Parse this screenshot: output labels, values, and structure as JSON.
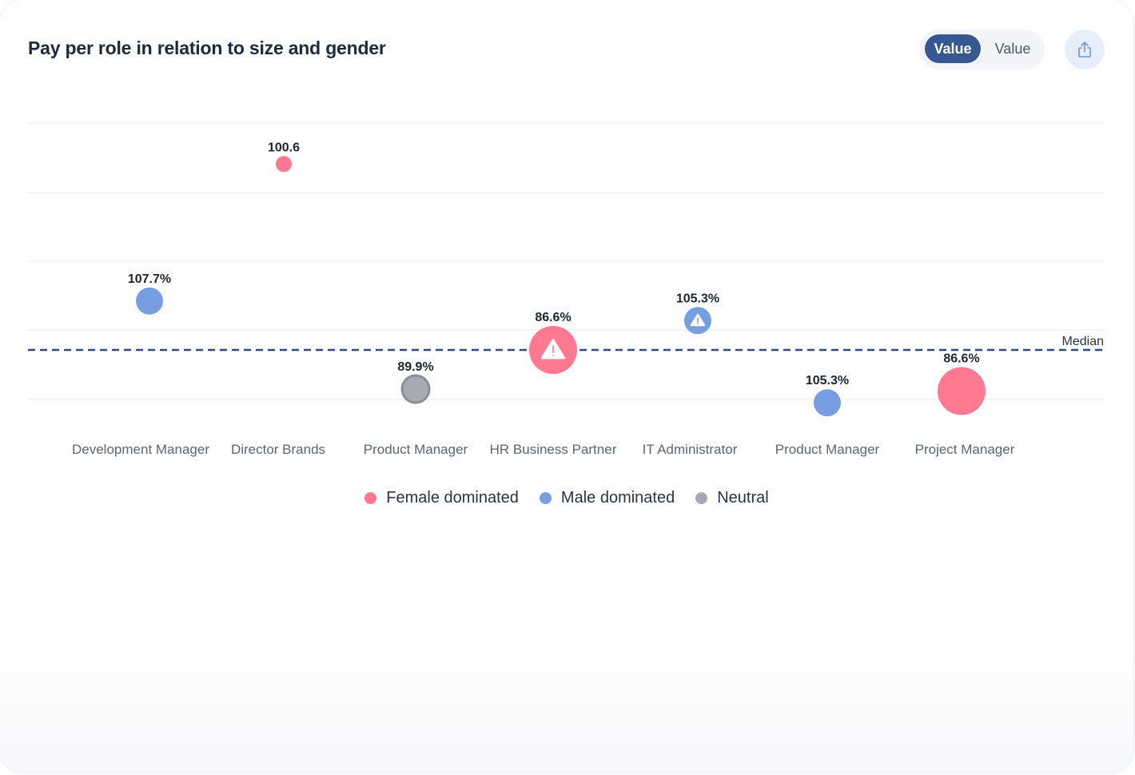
{
  "header": {
    "title": "Pay per role in relation to size and gender",
    "toggle": {
      "active_label": "Value",
      "inactive_label": "Value"
    },
    "share_icon": "share-icon"
  },
  "colors": {
    "female": "#ff7a91",
    "male": "#769ee0",
    "neutral": "#a7abb1",
    "median": "#2d4a84",
    "toggle_active": "#355891"
  },
  "chart_data": {
    "type": "scatter",
    "median_label": "Median",
    "categories": [
      "Development Manager",
      "Director Brands",
      "Product Manager",
      "HR Business Partner",
      "IT Administrator",
      "Product Manager",
      "Project Manager"
    ],
    "points": [
      {
        "category": "Development Manager",
        "label": "107.7%",
        "group": "male",
        "relative": 0.25,
        "size": "small",
        "warning": false
      },
      {
        "category": "Director Brands",
        "label": "100.6",
        "group": "female",
        "relative": 0.95,
        "size": "tiny",
        "warning": false
      },
      {
        "category": "Product Manager",
        "label": "89.9%",
        "group": "neutral",
        "relative": -0.2,
        "size": "small",
        "warning": false
      },
      {
        "category": "HR Business Partner",
        "label": "86.6%",
        "group": "female",
        "relative": 0.0,
        "size": "large",
        "warning": true
      },
      {
        "category": "IT Administrator",
        "label": "105.3%",
        "group": "male",
        "relative": 0.15,
        "size": "small",
        "warning": true
      },
      {
        "category": "Product Manager",
        "label": "105.3%",
        "group": "male",
        "relative": -0.27,
        "size": "small",
        "warning": false
      },
      {
        "category": "Project Manager",
        "label": "86.6%",
        "group": "female",
        "relative": -0.21,
        "size": "large",
        "warning": false
      }
    ],
    "grid": true,
    "legend_position": "bottom"
  },
  "legend": [
    {
      "label": "Female dominated",
      "group": "female"
    },
    {
      "label": "Male dominated",
      "group": "male"
    },
    {
      "label": "Neutral",
      "group": "neutral"
    }
  ]
}
